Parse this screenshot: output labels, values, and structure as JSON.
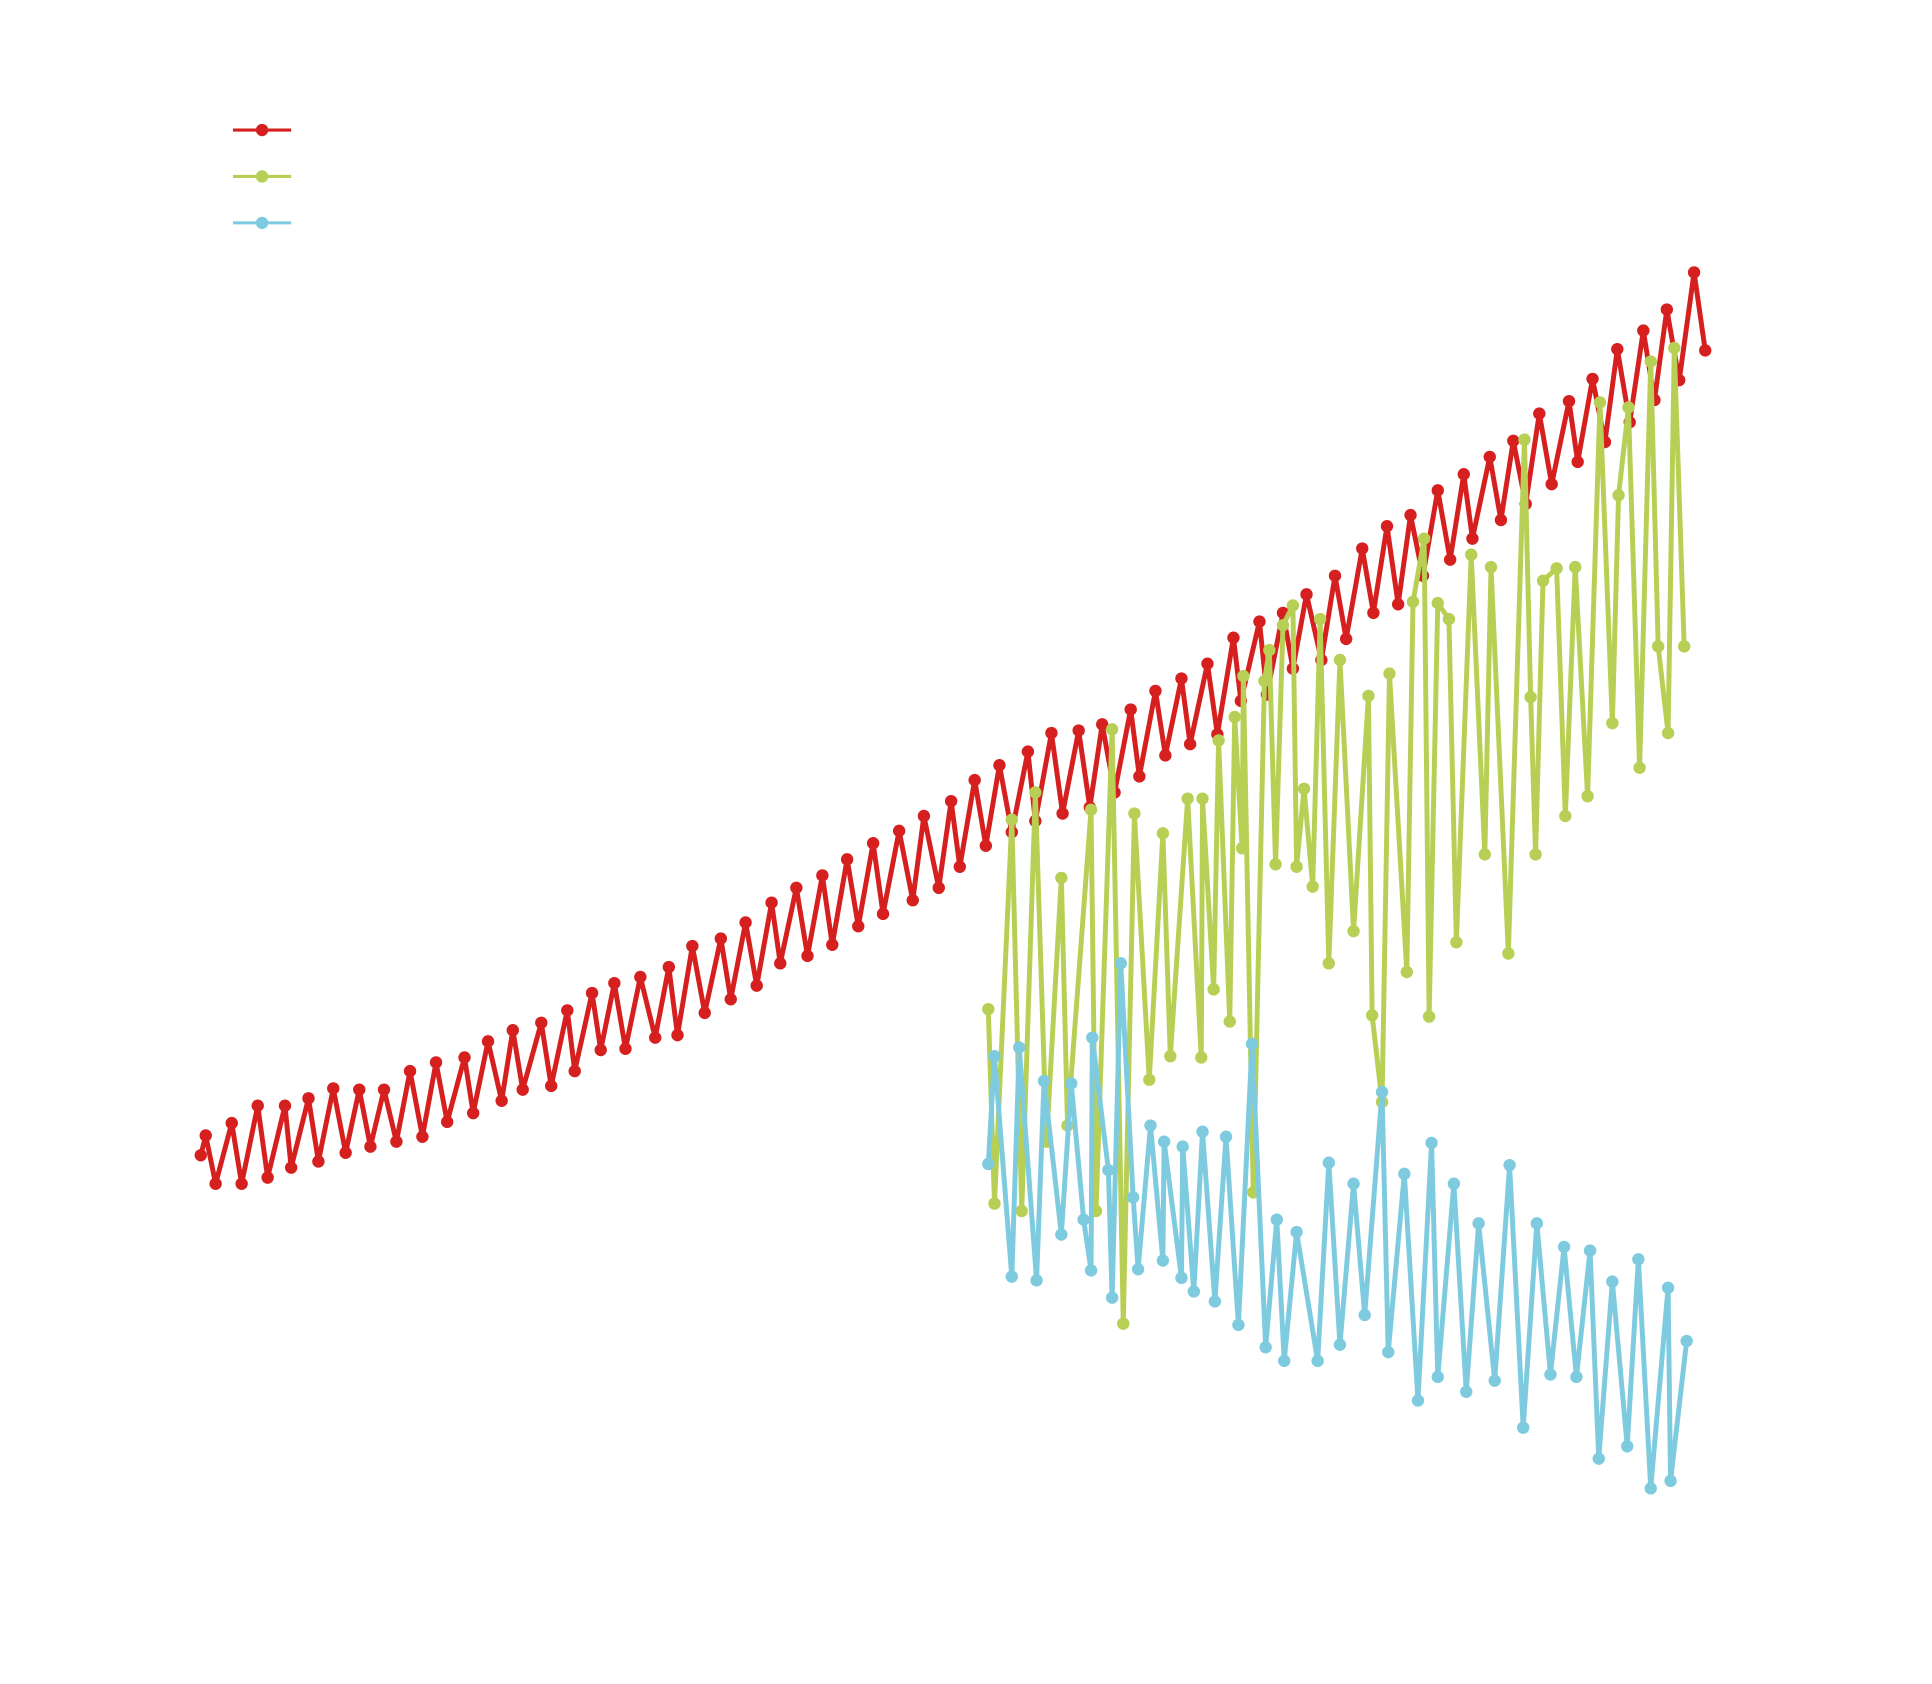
{
  "chart_data": {
    "type": "line",
    "legend": "upper left",
    "grid": false,
    "xlim": [
      0,
      1560
    ],
    "ylim": [
      0,
      1360
    ],
    "series": [
      {
        "color": "#d62020",
        "x": [
          162,
          166,
          174,
          187,
          195,
          208,
          216,
          230,
          235,
          249,
          257,
          269,
          279,
          290,
          299,
          310,
          320,
          331,
          341,
          352,
          361,
          375,
          382,
          394,
          405,
          414,
          422,
          437,
          445,
          458,
          464,
          478,
          485,
          496,
          505,
          517,
          529,
          540,
          547,
          559,
          569,
          582,
          590,
          602,
          611,
          623,
          630,
          643,
          652,
          664,
          672,
          684,
          693,
          705,
          713,
          726,
          737,
          746,
          758,
          768,
          775,
          787,
          796,
          807,
          817,
          830,
          836,
          849,
          858,
          871,
          880,
          890,
          900,
          913,
          920,
          933,
          941,
          954,
          961,
          975,
          983,
          996,
          1002,
          1017,
          1023,
          1036,
          1044,
          1055,
          1067,
          1078,
          1087,
          1100,
          1109,
          1120,
          1129,
          1139,
          1149,
          1161,
          1171,
          1182,
          1189,
          1203,
          1212,
          1222,
          1232,
          1243,
          1253,
          1267,
          1274,
          1286,
          1296,
          1306,
          1316,
          1327,
          1336,
          1346,
          1356,
          1368,
          1377
        ],
        "values": [
          427,
          443,
          404,
          453,
          404,
          467,
          409,
          467,
          417,
          473,
          422,
          481,
          429,
          480,
          434,
          480,
          438,
          495,
          442,
          502,
          454,
          506,
          461,
          519,
          471,
          528,
          480,
          534,
          483,
          544,
          495,
          558,
          512,
          566,
          513,
          571,
          522,
          579,
          524,
          596,
          542,
          602,
          553,
          615,
          564,
          631,
          582,
          643,
          588,
          653,
          597,
          666,
          612,
          679,
          622,
          689,
          633,
          701,
          643,
          713,
          660,
          730,
          677,
          742,
          688,
          753,
          697,
          768,
          703,
          770,
          708,
          775,
          720,
          787,
          733,
          802,
          750,
          812,
          759,
          824,
          767,
          845,
          794,
          858,
          799,
          865,
          820,
          880,
          827,
          895,
          844,
          917,
          865,
          935,
          872,
          944,
          895,
          964,
          908,
          977,
          925,
          991,
          940,
          1004,
          953,
          1026,
          969,
          1036,
          987,
          1054,
          1003,
          1078,
          1019,
          1093,
          1037,
          1110,
          1053,
          1140,
          1077
        ]
      },
      {
        "color": "#b8cf55",
        "x": [
          798,
          803,
          817,
          825,
          836,
          845,
          857,
          862,
          881,
          885,
          898,
          907,
          916,
          928,
          939,
          945,
          959,
          970,
          971,
          980,
          984,
          993,
          997,
          1003,
          1004,
          1012,
          1021,
          1025,
          1030,
          1036,
          1044,
          1047,
          1053,
          1060,
          1066,
          1073,
          1082,
          1093,
          1105,
          1108,
          1116,
          1122,
          1136,
          1141,
          1150,
          1154,
          1161,
          1170,
          1176,
          1188,
          1199,
          1204,
          1218,
          1231,
          1236,
          1240,
          1246,
          1257,
          1264,
          1272,
          1282,
          1292,
          1302,
          1307,
          1315,
          1324,
          1333,
          1339,
          1347,
          1352,
          1360
        ],
        "values": [
          545,
          388,
          698,
          382,
          720,
          438,
          651,
          451,
          706,
          382,
          771,
          291,
          703,
          488,
          687,
          507,
          715,
          506,
          715,
          561,
          762,
          535,
          781,
          675,
          814,
          397,
          810,
          835,
          662,
          855,
          871,
          660,
          723,
          644,
          860,
          582,
          827,
          608,
          798,
          540,
          470,
          816,
          575,
          874,
          925,
          539,
          873,
          860,
          599,
          912,
          670,
          902,
          590,
          1005,
          797,
          670,
          891,
          901,
          701,
          902,
          717,
          1035,
          776,
          960,
          1031,
          740,
          1068,
          838,
          768,
          1079,
          838
        ]
      },
      {
        "color": "#7ecbe0",
        "x": [
          798,
          803,
          817,
          823,
          837,
          843,
          857,
          865,
          875,
          881,
          882,
          895,
          898,
          905,
          915,
          919,
          929,
          939,
          940,
          954,
          955,
          964,
          971,
          981,
          990,
          1000,
          1011,
          1022,
          1031,
          1037,
          1047,
          1064,
          1073,
          1082,
          1093,
          1102,
          1116,
          1121,
          1134,
          1145,
          1156,
          1161,
          1174,
          1184,
          1194,
          1207,
          1219,
          1230,
          1241,
          1252,
          1263,
          1273,
          1284,
          1291,
          1302,
          1314,
          1323,
          1333,
          1347,
          1349,
          1362
        ],
        "values": [
          420,
          507,
          329,
          514,
          326,
          487,
          363,
          485,
          375,
          334,
          522,
          415,
          312,
          582,
          393,
          335,
          451,
          342,
          438,
          328,
          434,
          317,
          446,
          309,
          442,
          290,
          517,
          272,
          375,
          261,
          365,
          261,
          421,
          274,
          404,
          298,
          478,
          268,
          412,
          229,
          437,
          248,
          404,
          236,
          372,
          245,
          419,
          207,
          372,
          250,
          353,
          248,
          350,
          182,
          325,
          192,
          343,
          158,
          320,
          164,
          277
        ]
      }
    ]
  }
}
